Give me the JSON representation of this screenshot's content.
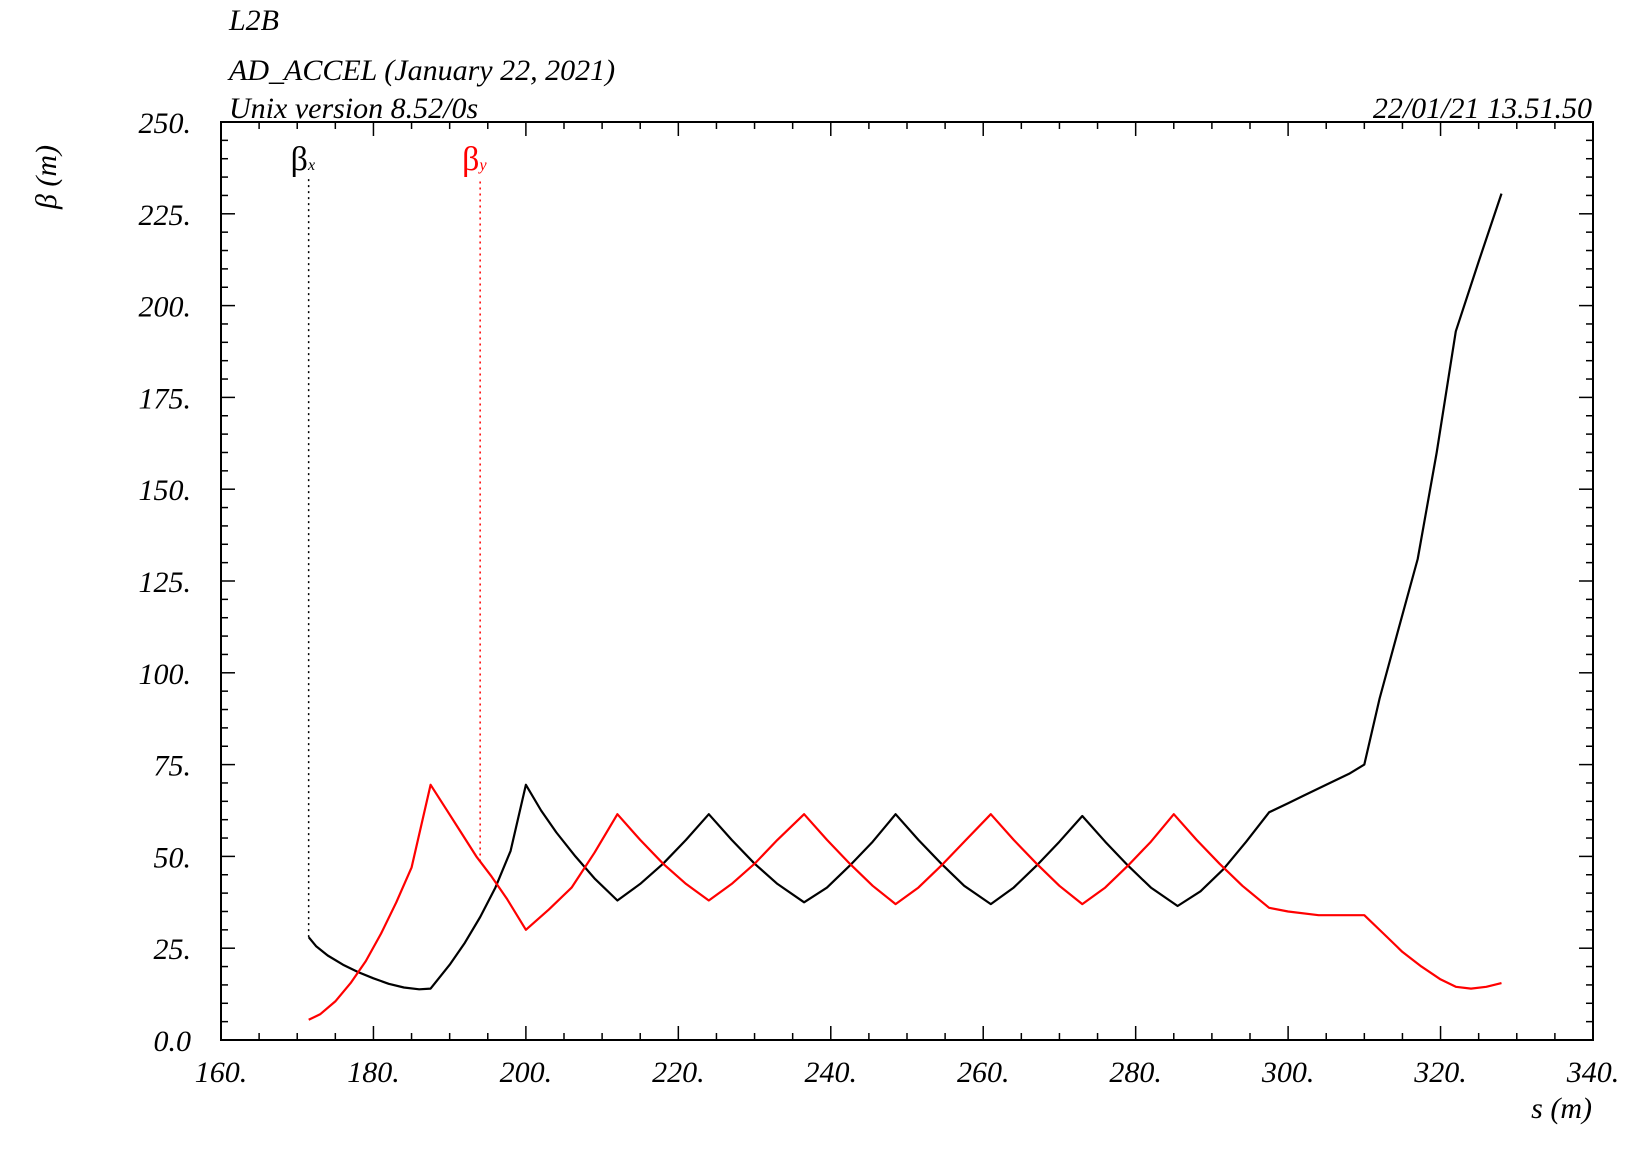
{
  "header": {
    "line1": "L2B",
    "line2": "AD_ACCEL (January 22, 2021)",
    "line3": "Unix version 8.52/0s",
    "timestamp": "22/01/21  13.51.50"
  },
  "chart_data": {
    "type": "line",
    "xlabel": "s (m)",
    "ylabel": "β (m)",
    "xlim": [
      160,
      340
    ],
    "ylim": [
      0,
      250
    ],
    "x_ticks": [
      "160.",
      "180.",
      "200.",
      "220.",
      "240.",
      "260.",
      "280.",
      "300.",
      "320.",
      "340."
    ],
    "y_ticks": [
      "0.0",
      "25.",
      "50.",
      "75.",
      "100.",
      "125.",
      "150.",
      "175.",
      "200.",
      "225.",
      "250."
    ],
    "grid": false,
    "series": [
      {
        "name": "βx",
        "name_main": "β",
        "name_sub": "x",
        "color": "#000000",
        "legend_x": 171.5,
        "points": [
          [
            171.5,
            28.0
          ],
          [
            172.5,
            25.5
          ],
          [
            174.0,
            23.0
          ],
          [
            176.0,
            20.5
          ],
          [
            178.0,
            18.5
          ],
          [
            180.0,
            16.8
          ],
          [
            182.0,
            15.3
          ],
          [
            184.0,
            14.3
          ],
          [
            186.0,
            13.8
          ],
          [
            187.5,
            14.0
          ],
          [
            190.0,
            20.5
          ],
          [
            192.0,
            26.5
          ],
          [
            194.0,
            33.5
          ],
          [
            196.0,
            41.5
          ],
          [
            198.0,
            51.5
          ],
          [
            200.0,
            69.5
          ],
          [
            202.0,
            62.5
          ],
          [
            204.0,
            56.5
          ],
          [
            206.5,
            50.0
          ],
          [
            209.0,
            44.0
          ],
          [
            212.0,
            38.0
          ],
          [
            215.0,
            42.5
          ],
          [
            218.0,
            48.0
          ],
          [
            221.0,
            54.5
          ],
          [
            224.0,
            61.5
          ],
          [
            227.0,
            54.5
          ],
          [
            230.0,
            48.0
          ],
          [
            233.0,
            42.5
          ],
          [
            236.5,
            37.5
          ],
          [
            239.5,
            41.5
          ],
          [
            242.5,
            47.5
          ],
          [
            245.5,
            54.0
          ],
          [
            248.5,
            61.5
          ],
          [
            251.5,
            54.5
          ],
          [
            254.5,
            48.0
          ],
          [
            257.5,
            42.0
          ],
          [
            261.0,
            37.0
          ],
          [
            264.0,
            41.5
          ],
          [
            267.0,
            47.5
          ],
          [
            270.0,
            54.0
          ],
          [
            273.0,
            61.0
          ],
          [
            276.0,
            54.0
          ],
          [
            279.0,
            47.5
          ],
          [
            282.0,
            41.5
          ],
          [
            285.5,
            36.5
          ],
          [
            288.5,
            40.5
          ],
          [
            291.5,
            46.5
          ],
          [
            294.5,
            54.0
          ],
          [
            297.5,
            62.0
          ],
          [
            300.0,
            64.5
          ],
          [
            302.0,
            66.5
          ],
          [
            305.0,
            69.5
          ],
          [
            308.0,
            72.5
          ],
          [
            310.0,
            75.0
          ],
          [
            312.0,
            93.0
          ],
          [
            314.5,
            112.0
          ],
          [
            317.0,
            131.0
          ],
          [
            319.5,
            160.0
          ],
          [
            322.0,
            193.0
          ],
          [
            325.0,
            212.0
          ],
          [
            328.0,
            230.5
          ]
        ]
      },
      {
        "name": "βy",
        "name_main": "β",
        "name_sub": "y",
        "color": "#ff0000",
        "legend_x": 194.0,
        "points": [
          [
            171.5,
            5.5
          ],
          [
            173.0,
            7.0
          ],
          [
            175.0,
            10.5
          ],
          [
            177.0,
            15.5
          ],
          [
            179.0,
            21.5
          ],
          [
            181.0,
            29.0
          ],
          [
            183.0,
            37.5
          ],
          [
            185.0,
            47.0
          ],
          [
            187.5,
            69.5
          ],
          [
            189.5,
            63.0
          ],
          [
            191.5,
            56.5
          ],
          [
            193.5,
            50.0
          ],
          [
            195.5,
            44.5
          ],
          [
            197.5,
            38.5
          ],
          [
            200.0,
            30.0
          ],
          [
            203.0,
            35.5
          ],
          [
            206.0,
            41.5
          ],
          [
            209.0,
            51.0
          ],
          [
            212.0,
            61.5
          ],
          [
            215.0,
            54.5
          ],
          [
            218.0,
            48.0
          ],
          [
            221.0,
            42.5
          ],
          [
            224.0,
            38.0
          ],
          [
            227.0,
            42.5
          ],
          [
            230.0,
            48.0
          ],
          [
            233.0,
            54.5
          ],
          [
            236.5,
            61.5
          ],
          [
            239.5,
            54.5
          ],
          [
            242.5,
            48.0
          ],
          [
            245.5,
            42.0
          ],
          [
            248.5,
            37.0
          ],
          [
            251.5,
            41.5
          ],
          [
            254.5,
            47.5
          ],
          [
            257.5,
            54.0
          ],
          [
            261.0,
            61.5
          ],
          [
            264.0,
            54.5
          ],
          [
            267.0,
            48.0
          ],
          [
            270.0,
            42.0
          ],
          [
            273.0,
            37.0
          ],
          [
            276.0,
            41.5
          ],
          [
            279.0,
            47.5
          ],
          [
            282.0,
            54.0
          ],
          [
            285.0,
            61.5
          ],
          [
            288.0,
            54.5
          ],
          [
            291.0,
            48.0
          ],
          [
            294.0,
            42.0
          ],
          [
            297.5,
            36.0
          ],
          [
            300.0,
            35.0
          ],
          [
            304.0,
            34.0
          ],
          [
            307.0,
            34.0
          ],
          [
            310.0,
            34.0
          ],
          [
            312.5,
            29.0
          ],
          [
            315.0,
            24.0
          ],
          [
            317.5,
            20.0
          ],
          [
            320.0,
            16.5
          ],
          [
            322.0,
            14.5
          ],
          [
            324.0,
            14.0
          ],
          [
            326.0,
            14.5
          ],
          [
            328.0,
            15.5
          ]
        ]
      }
    ]
  }
}
